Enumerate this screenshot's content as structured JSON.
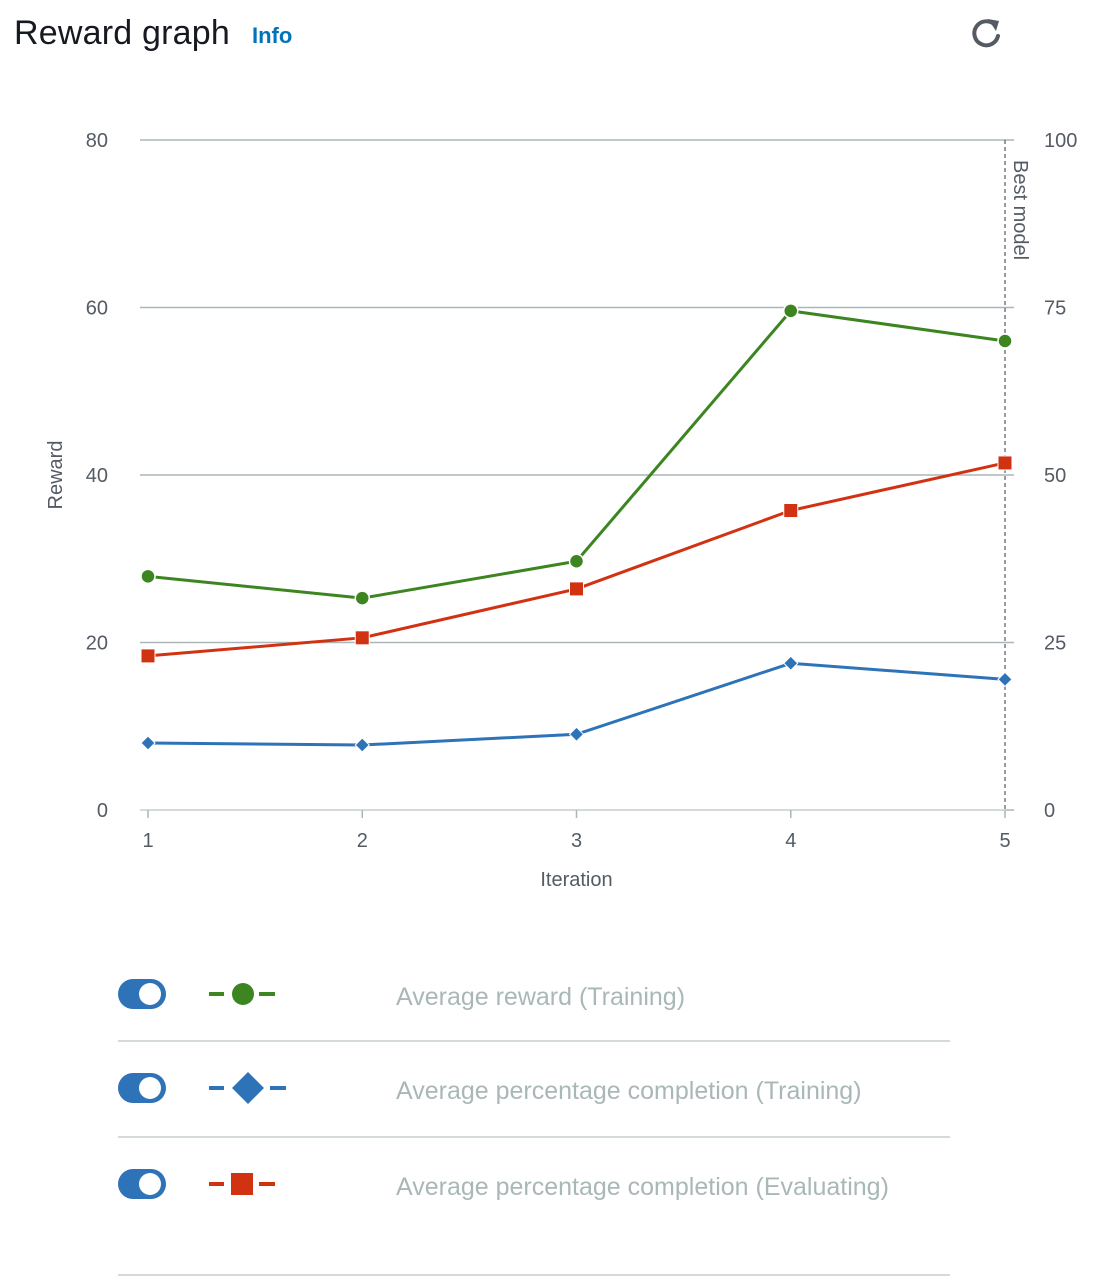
{
  "header": {
    "title": "Reward graph",
    "info_label": "Info",
    "refresh_icon": "refresh-icon"
  },
  "chart_data": {
    "type": "line",
    "x": [
      1,
      2,
      3,
      4,
      5
    ],
    "xlabel": "Iteration",
    "ylabel": "Reward",
    "ylim": [
      0,
      80
    ],
    "yticks": [
      0,
      20,
      40,
      60,
      80
    ],
    "y2lim": [
      0,
      100
    ],
    "y2ticks": [
      0,
      25,
      50,
      75,
      100
    ],
    "xticks": [
      1,
      2,
      3,
      4,
      5
    ],
    "annotation": "Best model",
    "annotation_x": 5,
    "grid": true,
    "series": [
      {
        "name": "Average reward (Training)",
        "axis": "left",
        "marker": "circle",
        "color": "#3c8521",
        "values": [
          27.9,
          25.3,
          29.7,
          59.6,
          56.0
        ]
      },
      {
        "name": "Average percentage completion (Training)",
        "axis": "right",
        "marker": "diamond",
        "color": "#2e73b8",
        "values": [
          10.0,
          9.7,
          11.3,
          21.9,
          19.5
        ]
      },
      {
        "name": "Average percentage completion (Evaluating)",
        "axis": "right",
        "marker": "square",
        "color": "#d13212",
        "values": [
          23.0,
          25.7,
          33.0,
          44.7,
          51.8
        ]
      }
    ]
  },
  "legend": {
    "items": [
      {
        "label": "Average reward (Training)",
        "marker": "circle",
        "color": "#3c8521",
        "enabled": true
      },
      {
        "label": "Average percentage completion (Training)",
        "marker": "diamond",
        "color": "#2e73b8",
        "enabled": true
      },
      {
        "label": "Average percentage completion (Evaluating)",
        "marker": "square",
        "color": "#d13212",
        "enabled": true
      }
    ]
  }
}
